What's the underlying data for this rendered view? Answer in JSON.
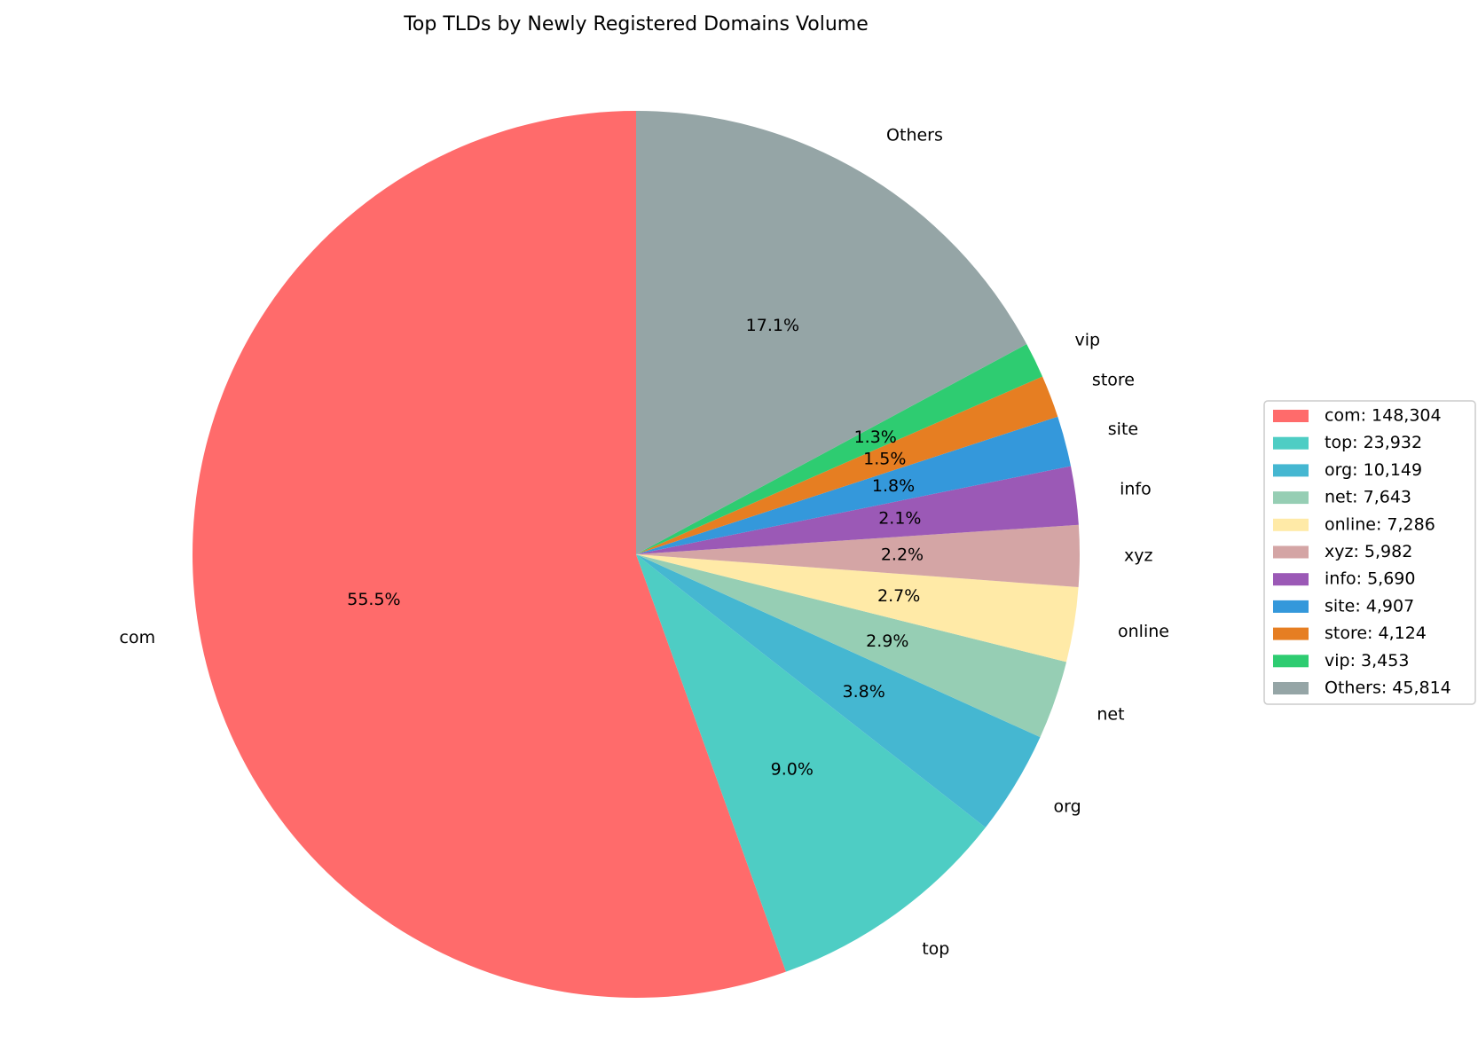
{
  "chart_data": {
    "type": "pie",
    "title": "Top TLDs by Newly Registered Domains Volume",
    "start_angle_deg": 90,
    "direction": "counterclockwise",
    "legend_position": "right",
    "slices": [
      {
        "label": "com",
        "value": 148304,
        "pct": "55.5%",
        "legend": "com: 148,304",
        "color": "#FF6B6B"
      },
      {
        "label": "top",
        "value": 23932,
        "pct": "9.0%",
        "legend": "top: 23,932",
        "color": "#4ECDC4"
      },
      {
        "label": "org",
        "value": 10149,
        "pct": "3.8%",
        "legend": "org: 10,149",
        "color": "#45B7D1"
      },
      {
        "label": "net",
        "value": 7643,
        "pct": "2.9%",
        "legend": "net: 7,643",
        "color": "#96CEB4"
      },
      {
        "label": "online",
        "value": 7286,
        "pct": "2.7%",
        "legend": "online: 7,286",
        "color": "#FFEAA7"
      },
      {
        "label": "xyz",
        "value": 5982,
        "pct": "2.2%",
        "legend": "xyz: 5,982",
        "color": "#D4A5A5"
      },
      {
        "label": "info",
        "value": 5690,
        "pct": "2.1%",
        "legend": "info: 5,690",
        "color": "#9B59B6"
      },
      {
        "label": "site",
        "value": 4907,
        "pct": "1.8%",
        "legend": "site: 4,907",
        "color": "#3498DB"
      },
      {
        "label": "store",
        "value": 4124,
        "pct": "1.5%",
        "legend": "store: 4,124",
        "color": "#E67E22"
      },
      {
        "label": "vip",
        "value": 3453,
        "pct": "1.3%",
        "legend": "vip: 3,453",
        "color": "#2ECC71"
      },
      {
        "label": "Others",
        "value": 45814,
        "pct": "17.1%",
        "legend": "Others: 45,814",
        "color": "#95A5A6"
      }
    ]
  }
}
